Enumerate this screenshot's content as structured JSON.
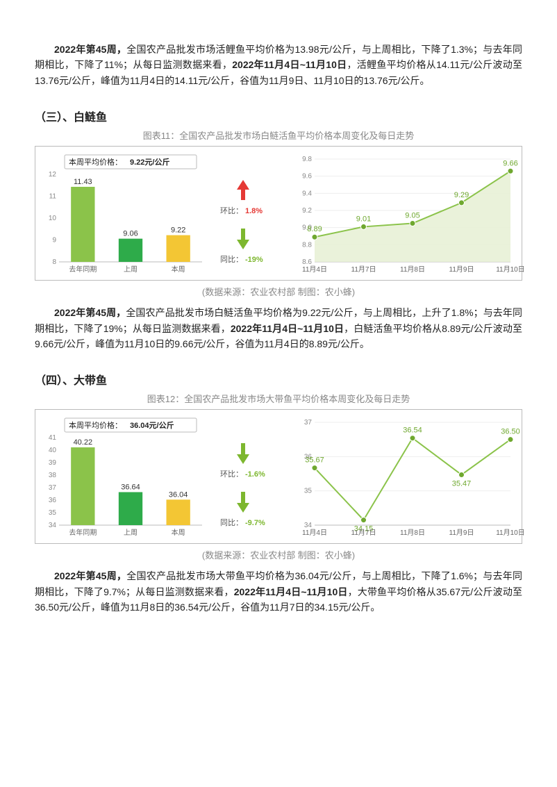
{
  "intro_para": {
    "lead_bold": "2022年第45周，",
    "body1": "全国农产品批发市场活鲤鱼平均价格为13.98元/公斤，与上周相比，下降了1.3%；与去年同期相比，下降了11%；从每日监测数据来看，",
    "mid_bold": "2022年11月4日~11月10日",
    "body2": "，活鲤鱼平均价格从14.11元/公斤波动至13.76元/公斤，峰值为11月4日的14.11元/公斤，谷值为11月9日、11月10日的13.76元/公斤。"
  },
  "sections": {
    "s3": {
      "head": "（三）、白鲢鱼",
      "fig_title": "图表11：全国农产品批发市场白鲢活鱼平均价格本周变化及每日走势",
      "source": "(数据来源：农业农村部   制图：农小蜂)",
      "bar_chart": {
        "title_prefix": "本周平均价格：",
        "title_value": "9.22元/公斤",
        "categories": [
          "去年同期",
          "上周",
          "本周"
        ],
        "values": [
          11.43,
          9.06,
          9.22
        ],
        "bar_colors": [
          "#8bc34a",
          "#2eab4a",
          "#f3c634"
        ],
        "ymin": 8,
        "ymax": 12,
        "ystep": 1
      },
      "mid": {
        "huanbi_label": "环比：",
        "huanbi_val": "1.8%",
        "huanbi_color": "#e53935",
        "huanbi_dir": "up",
        "tongbi_label": "同比：",
        "tongbi_val": "-19%",
        "tongbi_color": "#7db72f",
        "tongbi_dir": "down"
      },
      "line_chart": {
        "x_labels": [
          "11月4日",
          "11月7日",
          "11月8日",
          "11月9日",
          "11月10日"
        ],
        "y_values": [
          8.89,
          9.01,
          9.05,
          9.29,
          9.66
        ],
        "ymin": 8.6,
        "ymax": 9.8,
        "ystep": 0.2,
        "line_color": "#8bc34a",
        "fill_color": "#e8f1d6",
        "point_color": "#6fa82f",
        "label_color": "#6fa82f"
      },
      "para": {
        "lead_bold": "2022年第45周，",
        "body1": "全国农产品批发市场白鲢活鱼平均价格为9.22元/公斤，与上周相比，上升了1.8%；与去年同期相比，下降了19%；从每日监测数据来看，",
        "mid_bold": "2022年11月4日~11月10日",
        "body2": "，白鲢活鱼平均价格从8.89元/公斤波动至9.66元/公斤，峰值为11月10日的9.66元/公斤，谷值为11月4日的8.89元/公斤。"
      }
    },
    "s4": {
      "head": "（四）、大带鱼",
      "fig_title": "图表12：全国农产品批发市场大带鱼平均价格本周变化及每日走势",
      "source": "(数据来源：农业农村部   制图：农小蜂)",
      "bar_chart": {
        "title_prefix": "本周平均价格：",
        "title_value": "36.04元/公斤",
        "categories": [
          "去年同期",
          "上周",
          "本周"
        ],
        "values": [
          40.22,
          36.64,
          36.04
        ],
        "bar_colors": [
          "#8bc34a",
          "#2eab4a",
          "#f3c634"
        ],
        "ymin": 34,
        "ymax": 41,
        "ystep": 1
      },
      "mid": {
        "huanbi_label": "环比：",
        "huanbi_val": "-1.6%",
        "huanbi_color": "#7db72f",
        "huanbi_dir": "down",
        "tongbi_label": "同比：",
        "tongbi_val": "-9.7%",
        "tongbi_color": "#7db72f",
        "tongbi_dir": "down"
      },
      "line_chart": {
        "x_labels": [
          "11月4日",
          "11月7日",
          "11月8日",
          "11月9日",
          "11月10日"
        ],
        "y_values": [
          35.67,
          34.15,
          36.54,
          35.47,
          36.5
        ],
        "ymin": 34,
        "ymax": 37,
        "ystep": 1,
        "line_color": "#8bc34a",
        "fill_color": "#ffffff",
        "point_color": "#6fa82f",
        "label_color": "#6fa82f"
      },
      "para": {
        "lead_bold": "2022年第45周，",
        "body1": "全国农产品批发市场大带鱼平均价格为36.04元/公斤，与上周相比，下降了1.6%；与去年同期相比，下降了9.7%；从每日监测数据来看，",
        "mid_bold": "2022年11月4日~11月10日",
        "body2": "，大带鱼平均价格从35.67元/公斤波动至36.50元/公斤，峰值为11月8日的36.54元/公斤，谷值为11月7日的34.15元/公斤。"
      }
    }
  }
}
